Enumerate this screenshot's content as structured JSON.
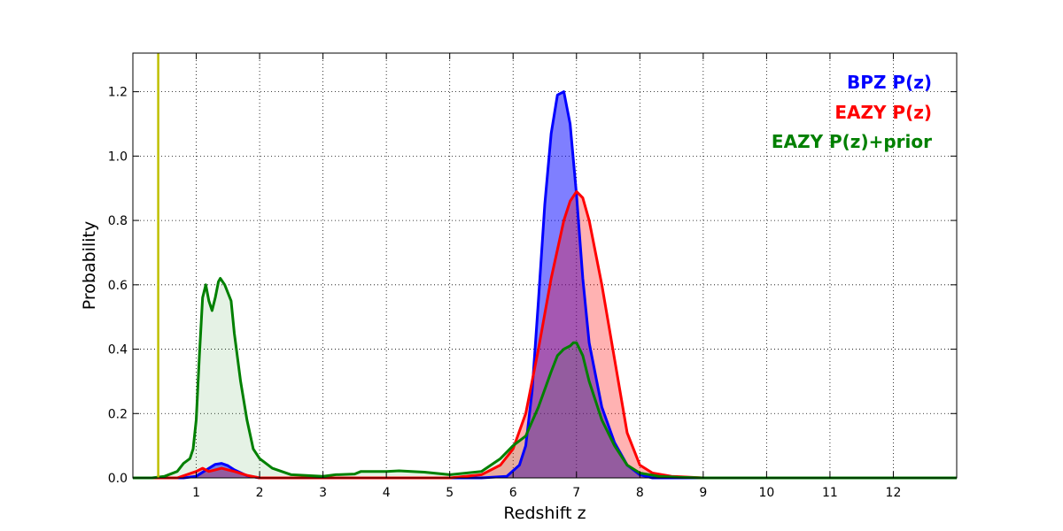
{
  "chart_data": {
    "type": "area",
    "title": "",
    "xlabel": "Redshift z",
    "ylabel": "Probability",
    "xlim": [
      0,
      13
    ],
    "ylim": [
      0,
      1.32
    ],
    "xticks": [
      1,
      2,
      3,
      4,
      5,
      6,
      7,
      8,
      9,
      10,
      11,
      12
    ],
    "yticks": [
      0.0,
      0.2,
      0.4,
      0.6,
      0.8,
      1.0,
      1.2
    ],
    "xtick_labels": [
      "1",
      "2",
      "3",
      "4",
      "5",
      "6",
      "7",
      "8",
      "9",
      "10",
      "11",
      "12"
    ],
    "ytick_labels": [
      "0.0",
      "0.2",
      "0.4",
      "0.6",
      "0.8",
      "1.0",
      "1.2"
    ],
    "grid": true,
    "legend_position": "top-right",
    "reference_line": {
      "x": 0.4,
      "color": "#bfbf00"
    },
    "series": [
      {
        "name": "BPZ P(z)",
        "color": "#0000ff",
        "fill_color": "#0000ff",
        "fill_opacity": 0.5,
        "x": [
          0,
          0.8,
          1.0,
          1.2,
          1.3,
          1.4,
          1.5,
          1.6,
          1.8,
          2.0,
          5.5,
          5.9,
          6.1,
          6.2,
          6.3,
          6.4,
          6.5,
          6.6,
          6.7,
          6.8,
          6.9,
          7.0,
          7.1,
          7.2,
          7.4,
          7.6,
          7.8,
          8.0,
          8.2,
          13.0
        ],
        "y": [
          0,
          0,
          0.005,
          0.03,
          0.042,
          0.045,
          0.038,
          0.025,
          0.007,
          0,
          0,
          0.005,
          0.04,
          0.1,
          0.27,
          0.55,
          0.85,
          1.07,
          1.19,
          1.2,
          1.1,
          0.88,
          0.62,
          0.42,
          0.22,
          0.11,
          0.04,
          0.01,
          0,
          0
        ]
      },
      {
        "name": "EAZY P(z)",
        "color": "#ff0000",
        "fill_color": "#ff0000",
        "fill_opacity": 0.3,
        "x": [
          0,
          0.7,
          1.0,
          1.1,
          1.2,
          1.3,
          1.4,
          1.5,
          1.6,
          1.8,
          2.0,
          5.0,
          5.5,
          5.8,
          6.0,
          6.2,
          6.4,
          6.6,
          6.8,
          6.9,
          7.0,
          7.1,
          7.2,
          7.4,
          7.6,
          7.8,
          8.0,
          8.2,
          8.5,
          9.0,
          13.0
        ],
        "y": [
          0,
          0,
          0.02,
          0.03,
          0.02,
          0.025,
          0.03,
          0.025,
          0.02,
          0.008,
          0,
          0,
          0.01,
          0.04,
          0.09,
          0.2,
          0.4,
          0.62,
          0.8,
          0.86,
          0.89,
          0.87,
          0.8,
          0.6,
          0.37,
          0.14,
          0.04,
          0.015,
          0.005,
          0,
          0
        ]
      },
      {
        "name": "EAZY P(z)+prior",
        "color": "#008000",
        "fill_color": "#008000",
        "fill_opacity": 0.1,
        "x": [
          0,
          0.3,
          0.5,
          0.7,
          0.8,
          0.9,
          0.95,
          1.0,
          1.05,
          1.1,
          1.15,
          1.2,
          1.25,
          1.3,
          1.35,
          1.38,
          1.45,
          1.55,
          1.6,
          1.7,
          1.8,
          1.9,
          2.0,
          2.2,
          2.5,
          3.0,
          3.2,
          3.5,
          3.6,
          4.0,
          4.2,
          4.6,
          5.0,
          5.5,
          5.8,
          6.0,
          6.2,
          6.4,
          6.6,
          6.7,
          6.8,
          6.9,
          6.95,
          7.0,
          7.1,
          7.2,
          7.4,
          7.6,
          7.8,
          8.0,
          8.3,
          8.6,
          9.0,
          13.0
        ],
        "y": [
          0,
          0,
          0.005,
          0.02,
          0.045,
          0.06,
          0.09,
          0.18,
          0.38,
          0.56,
          0.6,
          0.55,
          0.52,
          0.56,
          0.61,
          0.62,
          0.6,
          0.55,
          0.45,
          0.3,
          0.18,
          0.09,
          0.06,
          0.03,
          0.01,
          0.005,
          0.01,
          0.012,
          0.02,
          0.02,
          0.022,
          0.018,
          0.01,
          0.02,
          0.06,
          0.1,
          0.13,
          0.22,
          0.33,
          0.38,
          0.4,
          0.41,
          0.42,
          0.42,
          0.38,
          0.3,
          0.18,
          0.1,
          0.04,
          0.015,
          0.005,
          0.002,
          0,
          0
        ]
      }
    ]
  }
}
